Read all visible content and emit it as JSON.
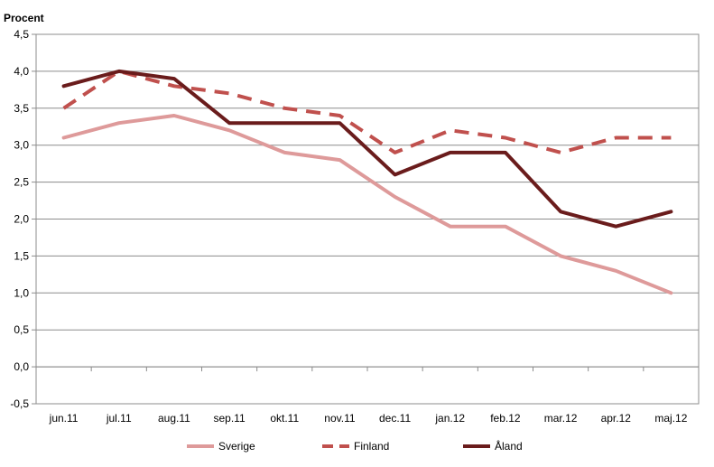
{
  "chart_data": {
    "type": "line",
    "title": "",
    "ylabel": "Procent",
    "xlabel": "",
    "categories": [
      "jun.11",
      "jul.11",
      "aug.11",
      "sep.11",
      "okt.11",
      "nov.11",
      "dec.11",
      "jan.12",
      "feb.12",
      "mar.12",
      "apr.12",
      "maj.12"
    ],
    "ylim": [
      -0.5,
      4.5
    ],
    "ytick_step": 0.5,
    "ytick_labels": [
      "-0,5",
      "0,0",
      "0,5",
      "1,0",
      "1,5",
      "2,0",
      "2,5",
      "3,0",
      "3,5",
      "4,0",
      "4,5"
    ],
    "grid": true,
    "legend_position": "bottom",
    "series": [
      {
        "name": "Sverige",
        "color": "#de9a9a",
        "style": "solid",
        "values": [
          3.1,
          3.3,
          3.4,
          3.2,
          2.9,
          2.8,
          2.3,
          1.9,
          1.9,
          1.5,
          1.3,
          1.0
        ]
      },
      {
        "name": "Finland",
        "color": "#c0504d",
        "style": "dashed",
        "values": [
          3.5,
          4.0,
          3.8,
          3.7,
          3.5,
          3.4,
          2.9,
          3.2,
          3.1,
          2.9,
          3.1,
          3.1
        ]
      },
      {
        "name": "Åland",
        "color": "#6a1c1c",
        "style": "solid",
        "values": [
          3.8,
          4.0,
          3.9,
          3.3,
          3.3,
          3.3,
          2.6,
          2.9,
          2.9,
          2.1,
          1.9,
          2.1
        ]
      }
    ]
  }
}
